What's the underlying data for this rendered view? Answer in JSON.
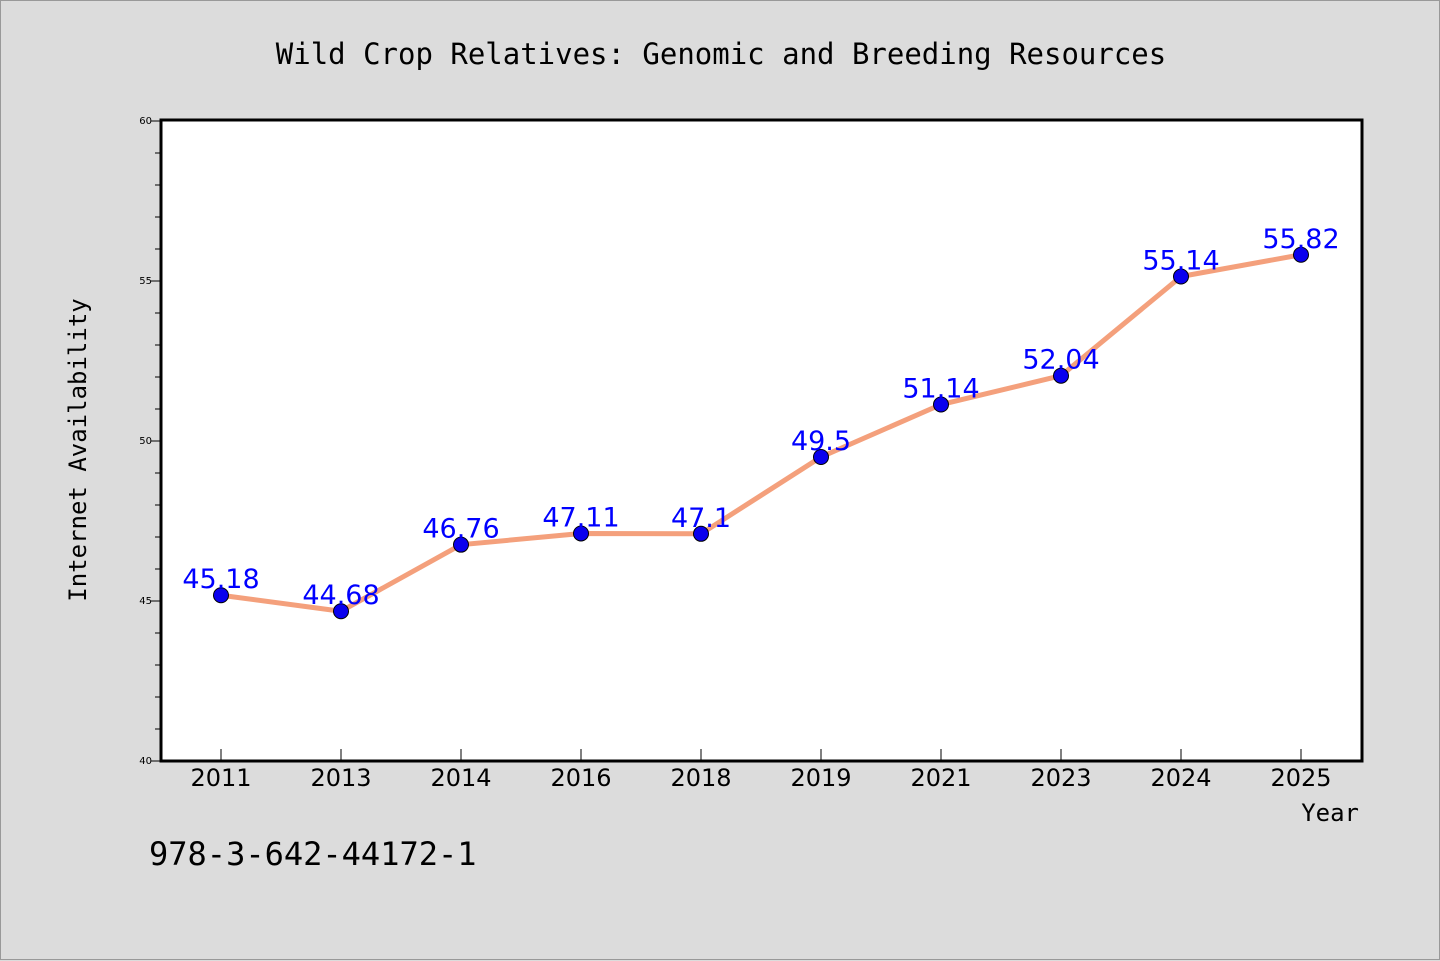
{
  "chart_data": {
    "type": "line",
    "title": "Wild Crop Relatives: Genomic and Breeding Resources",
    "xlabel": "Year",
    "ylabel": "Internet Availability",
    "categories": [
      "2011",
      "2013",
      "2014",
      "2016",
      "2018",
      "2019",
      "2021",
      "2023",
      "2024",
      "2025"
    ],
    "series": [
      {
        "values": [
          45.18,
          44.68,
          46.76,
          47.11,
          47.1,
          49.5,
          51.14,
          52.04,
          55.14,
          55.82
        ],
        "labels": [
          "45.18",
          "44.68",
          "46.76",
          "47.11",
          "47.1",
          "49.5",
          "51.14",
          "52.04",
          "55.14",
          "55.82"
        ],
        "line_color": "#f4a07c",
        "marker_color": "#0a00ee",
        "label_color": "#0000ff"
      }
    ],
    "ylim": [
      40,
      60
    ],
    "yticks": [
      40,
      45,
      50,
      55,
      60
    ],
    "ytick_labels": [
      "40",
      "45",
      "50",
      "55",
      "60"
    ],
    "grid": false,
    "legend": "none"
  },
  "footer_text": "978-3-642-44172-1",
  "colors": {
    "background": "#dcdcdc",
    "plot_background": "#ffffff",
    "axis": "#000000"
  }
}
